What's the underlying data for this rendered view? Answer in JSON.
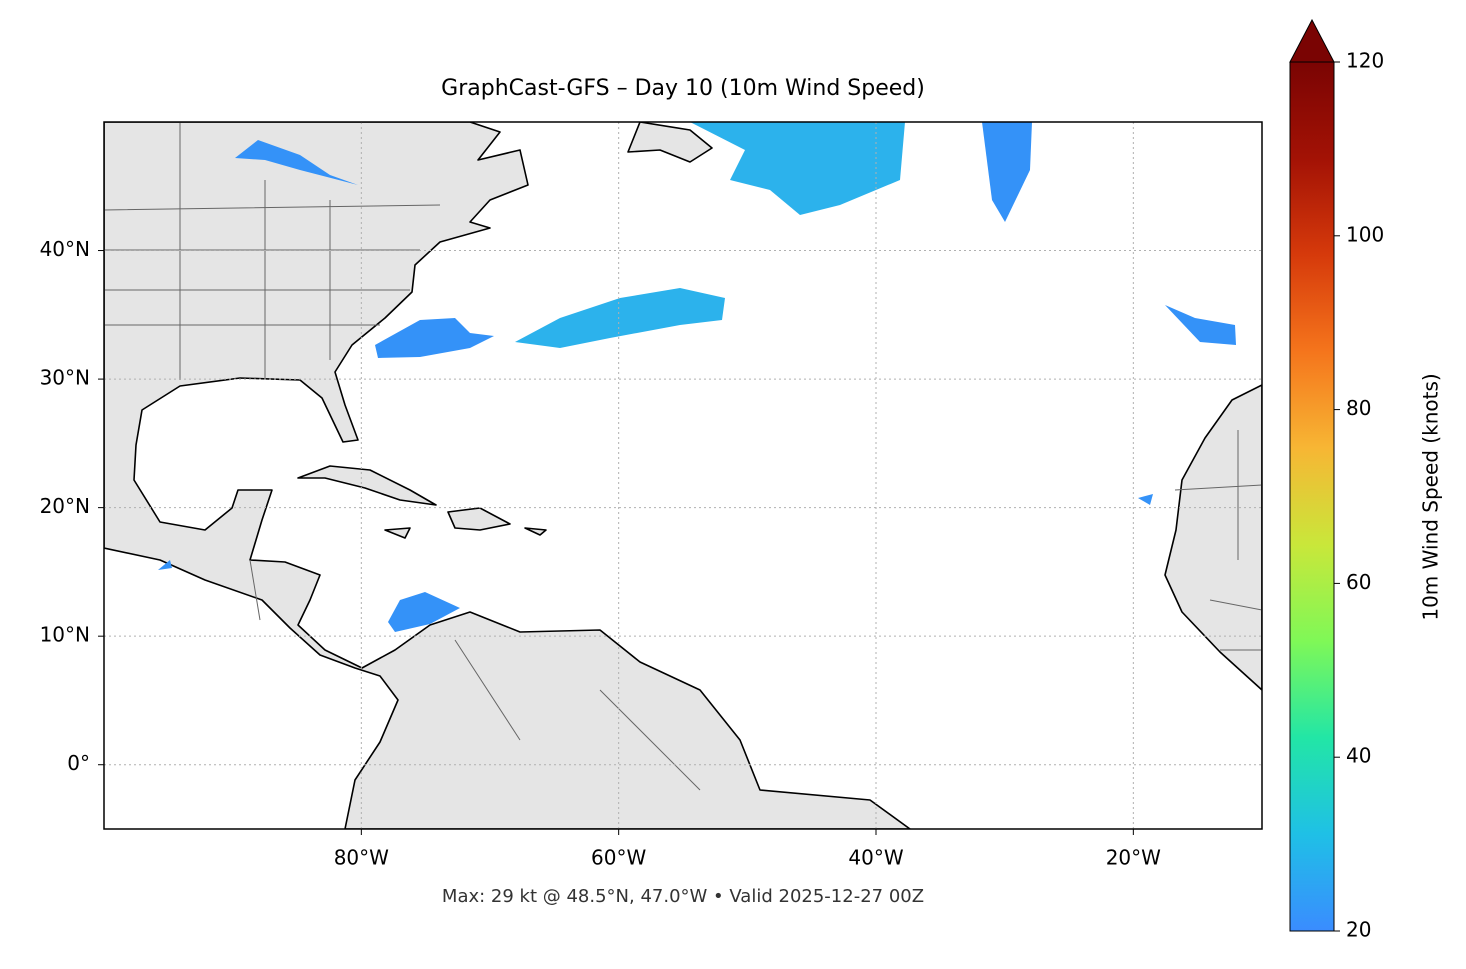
{
  "chart_data": {
    "type": "map",
    "title": "GraphCast-GFS – Day 10 (10m Wind Speed)",
    "footnote": "Max: 29 kt @ 48.5°N, 47.0°W • Valid 2025-12-27 00Z",
    "xlim": [
      -100,
      -10
    ],
    "ylim": [
      -5,
      50
    ],
    "xticks": [
      {
        "value": -80,
        "label": "80°W"
      },
      {
        "value": -60,
        "label": "60°W"
      },
      {
        "value": -40,
        "label": "40°W"
      },
      {
        "value": -20,
        "label": "20°W"
      }
    ],
    "yticks": [
      {
        "value": 0,
        "label": "0°"
      },
      {
        "value": 10,
        "label": "10°N"
      },
      {
        "value": 20,
        "label": "20°N"
      },
      {
        "value": 30,
        "label": "30°N"
      },
      {
        "value": 40,
        "label": "40°N"
      }
    ],
    "grid": true,
    "colorbar": {
      "label": "10m Wind Speed (knots)",
      "lim": [
        20,
        120
      ],
      "ticks": [
        20,
        40,
        60,
        80,
        100,
        120
      ],
      "colors": [
        "#3a8cff",
        "#1fc0e6",
        "#22e6a6",
        "#7ff857",
        "#c9e73a",
        "#f7b634",
        "#f5751c",
        "#d63a0b",
        "#a31205",
        "#7a0403"
      ]
    }
  }
}
